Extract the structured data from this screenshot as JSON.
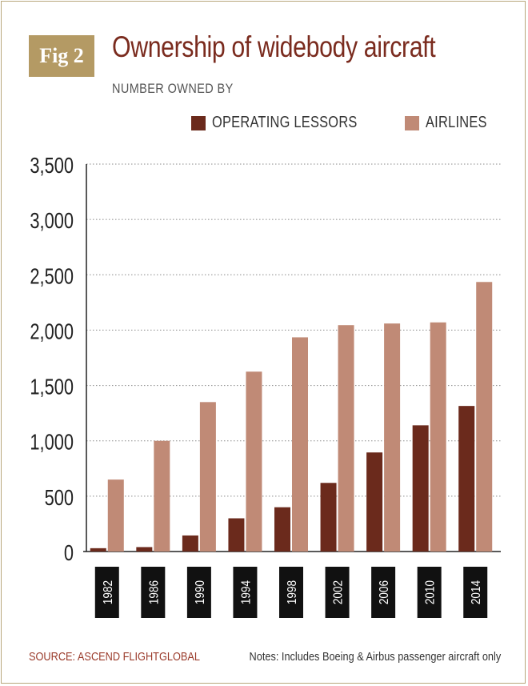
{
  "badge": "Fig 2",
  "colors": {
    "lessors": "#6b2a1c",
    "airlines": "#c08a76",
    "title": "#7a2b1e",
    "badge": "#b49a64"
  },
  "chart_data": {
    "type": "bar",
    "title": "Ownership of widebody aircraft",
    "subtitle": "NUMBER OWNED BY",
    "categories": [
      "1982",
      "1986",
      "1990",
      "1994",
      "1998",
      "2002",
      "2006",
      "2010",
      "2014"
    ],
    "series": [
      {
        "name": "OPERATING LESSORS",
        "values": [
          30,
          40,
          145,
          300,
          400,
          620,
          895,
          1140,
          1315
        ]
      },
      {
        "name": "AIRLINES",
        "values": [
          650,
          1000,
          1350,
          1625,
          1935,
          2045,
          2060,
          2070,
          2435
        ]
      }
    ],
    "ylim": [
      0,
      3500
    ],
    "yticks": [
      "0",
      "500",
      "1,000",
      "1,500",
      "2,000",
      "2,500",
      "3,000",
      "3,500"
    ],
    "grid": true,
    "legend": "top-right"
  },
  "footer": {
    "source": "SOURCE: ASCEND FLIGHTGLOBAL",
    "notes": "Notes: Includes Boeing & Airbus passenger aircraft only"
  }
}
